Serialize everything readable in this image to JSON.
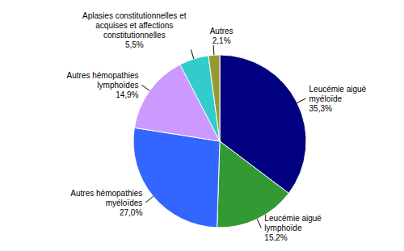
{
  "chart_data": {
    "type": "pie",
    "categories": [
      "Leucémie aiguë myéloïde",
      "Leucémie aiguë lymphoïde",
      "Autres hémopathies myéloïdes",
      "Autres hémopathies lymphoïdes",
      "Aplasies constitutionnelles et acquises et affections constitutionnelles",
      "Autres"
    ],
    "values": [
      35.3,
      15.2,
      27.0,
      14.9,
      5.5,
      2.1
    ],
    "value_labels": [
      "35,3%",
      "15,2%",
      "27,0%",
      "14,9%",
      "5,5%",
      "2,1%"
    ],
    "colors": [
      "#000080",
      "#339933",
      "#3366FF",
      "#CC99FF",
      "#33CCCC",
      "#999933"
    ],
    "data_labels": true
  }
}
